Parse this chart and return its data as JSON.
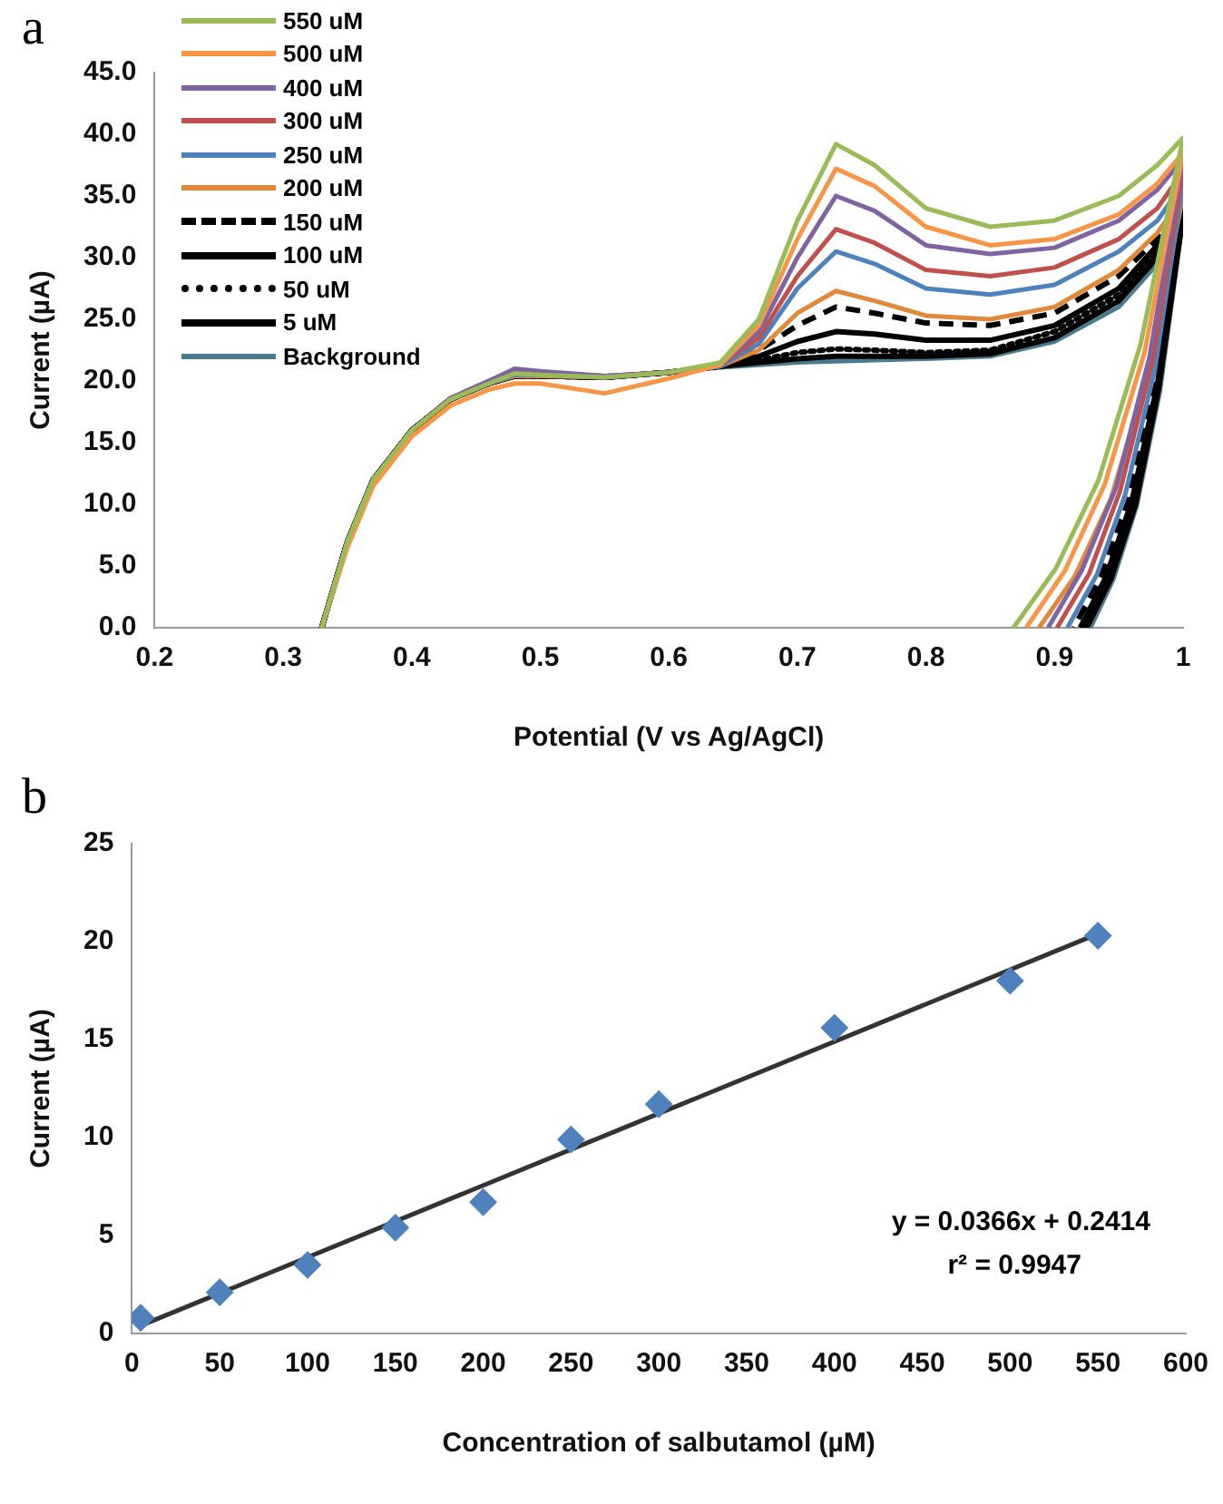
{
  "chart_data": [
    {
      "type": "line",
      "xlabel": "Potential (V vs Ag/AgCl)",
      "ylabel": "Current (µA)",
      "annotations": [
        "a"
      ],
      "xlim": [
        0.2,
        1
      ],
      "xticks": [
        0.2,
        0.3,
        0.4,
        0.5,
        0.6,
        0.7,
        0.8,
        0.9,
        1
      ],
      "ylim": [
        0,
        45
      ],
      "yticks": [
        {
          "value": 0,
          "label": "0.0"
        },
        {
          "value": 5,
          "label": "5.0"
        },
        {
          "value": 10,
          "label": "10.0"
        },
        {
          "value": 15,
          "label": "15.0"
        },
        {
          "value": 20,
          "label": "20.0"
        },
        {
          "value": 25,
          "label": "25.0"
        },
        {
          "value": 30,
          "label": "30.0"
        },
        {
          "value": 35,
          "label": "35.0"
        },
        {
          "value": 40,
          "label": "40.0"
        },
        {
          "value": 45,
          "label": "45.0"
        }
      ],
      "grid": false,
      "legend": "top left",
      "series": [
        {
          "name": "550 uM",
          "color": "#9bbb59",
          "x": [
            0.33,
            0.35,
            0.37,
            0.4,
            0.43,
            0.46,
            0.48,
            0.5,
            0.55,
            0.6,
            0.64,
            0.67,
            0.7,
            0.73,
            0.76,
            0.8,
            0.85,
            0.9,
            0.95,
            0.98,
            1,
            0.967,
            0.934,
            0.901,
            0.868
          ],
          "values": [
            0,
            7,
            12,
            16,
            18.5,
            19.8,
            20.6,
            20.5,
            20.3,
            20.7,
            21.5,
            25,
            33,
            39.2,
            37.5,
            34,
            32.5,
            33,
            35,
            37.5,
            39.7,
            23,
            11.9,
            4.8,
            0
          ]
        },
        {
          "name": "500 uM",
          "color": "#f79646",
          "x": [
            0.33,
            0.35,
            0.37,
            0.4,
            0.43,
            0.46,
            0.48,
            0.5,
            0.55,
            0.6,
            0.64,
            0.67,
            0.7,
            0.73,
            0.76,
            0.8,
            0.85,
            0.9,
            0.95,
            0.98,
            1,
            0.97,
            0.939,
            0.908,
            0.878
          ],
          "values": [
            0,
            6.5,
            11.5,
            15.5,
            18,
            19.3,
            19.8,
            19.8,
            19,
            20.2,
            21.3,
            24.5,
            31.5,
            37.2,
            35.8,
            32.5,
            31,
            31.5,
            33.5,
            36,
            38.5,
            22.3,
            11.6,
            4.6,
            0
          ]
        },
        {
          "name": "400 uM",
          "color": "#8064a2",
          "x": [
            0.33,
            0.35,
            0.37,
            0.4,
            0.43,
            0.46,
            0.48,
            0.5,
            0.55,
            0.6,
            0.64,
            0.67,
            0.7,
            0.73,
            0.76,
            0.8,
            0.85,
            0.9,
            0.95,
            0.98,
            1,
            0.974,
            0.948,
            0.921,
            0.895
          ],
          "values": [
            0,
            7,
            12,
            16,
            18.6,
            20,
            21,
            20.8,
            20.4,
            20.7,
            21.3,
            24,
            30,
            35,
            33.8,
            31,
            30.3,
            30.8,
            33,
            35.5,
            38,
            22,
            11.4,
            4.6,
            0
          ]
        },
        {
          "name": "300 uM",
          "color": "#c0504d",
          "x": [
            0.33,
            0.35,
            0.37,
            0.4,
            0.43,
            0.46,
            0.48,
            0.5,
            0.55,
            0.6,
            0.64,
            0.67,
            0.7,
            0.73,
            0.76,
            0.8,
            0.85,
            0.9,
            0.95,
            0.98,
            1,
            0.976,
            0.951,
            0.927,
            0.902
          ],
          "values": [
            0,
            7,
            12,
            16,
            18.6,
            20,
            20.9,
            20.7,
            20.4,
            20.7,
            21.3,
            23.5,
            28.5,
            32.3,
            31.2,
            29,
            28.5,
            29.2,
            31.5,
            34,
            37,
            21.5,
            11.1,
            4.4,
            0
          ]
        },
        {
          "name": "250 uM",
          "color": "#4f81bd",
          "x": [
            0.43,
            0.46,
            0.48,
            0.5,
            0.55,
            0.6,
            0.64,
            0.67,
            0.7,
            0.73,
            0.76,
            0.8,
            0.85,
            0.9,
            0.95,
            0.98,
            1,
            0.978,
            0.955,
            0.933,
            0.91
          ],
          "values": [
            18.5,
            19.8,
            20.5,
            20.5,
            20.3,
            20.7,
            21.2,
            23,
            27.5,
            30.5,
            29.5,
            27.5,
            27,
            27.8,
            30.5,
            33,
            36,
            20.9,
            10.8,
            4.3,
            0
          ]
        },
        {
          "name": "200 uM",
          "color": "#e0893a",
          "x": [
            0.33,
            0.35,
            0.37,
            0.4,
            0.43,
            0.46,
            0.48,
            0.5,
            0.55,
            0.6,
            0.64,
            0.67,
            0.7,
            0.73,
            0.76,
            0.8,
            0.85,
            0.9,
            0.95,
            0.98,
            1,
            0.972,
            0.944,
            0.916,
            0.888
          ],
          "values": [
            0,
            7,
            12,
            16,
            18.5,
            19.8,
            20.4,
            20.4,
            20.3,
            20.7,
            21.2,
            22.5,
            25.5,
            27.3,
            26.5,
            25.3,
            25,
            26,
            29,
            32,
            35,
            20.3,
            10.5,
            4.2,
            0
          ]
        },
        {
          "name": "150 uM",
          "color": "#000000",
          "line_style": "dashed",
          "x": [
            0.33,
            0.35,
            0.37,
            0.4,
            0.43,
            0.46,
            0.48,
            0.5,
            0.55,
            0.6,
            0.64,
            0.67,
            0.7,
            0.73,
            0.76,
            0.8,
            0.85,
            0.9,
            0.95,
            0.98,
            1,
            0.979,
            0.958,
            0.936,
            0.915
          ],
          "values": [
            0,
            7,
            12,
            16,
            18.5,
            19.8,
            20.4,
            20.4,
            20.3,
            20.7,
            21.2,
            22.5,
            24.5,
            26,
            25.5,
            24.7,
            24.5,
            25.5,
            28.5,
            31.5,
            34.5,
            20,
            10.4,
            4.1,
            0
          ]
        },
        {
          "name": "100 uM",
          "color": "#000000",
          "x": [
            0.33,
            0.35,
            0.37,
            0.4,
            0.43,
            0.46,
            0.48,
            0.5,
            0.55,
            0.6,
            0.64,
            0.67,
            0.7,
            0.73,
            0.76,
            0.8,
            0.85,
            0.9,
            0.95,
            0.98,
            1,
            0.98,
            0.96,
            0.94,
            0.92
          ],
          "values": [
            0,
            7,
            12,
            16,
            18.5,
            19.8,
            20.4,
            20.4,
            20.3,
            20.7,
            21.2,
            22,
            23.2,
            24,
            23.8,
            23.3,
            23.3,
            24.5,
            27.5,
            31,
            34,
            19.7,
            10.2,
            4.1,
            0
          ]
        },
        {
          "name": "50 uM",
          "color": "#000000",
          "line_style": "dotted",
          "x": [
            0.33,
            0.35,
            0.37,
            0.4,
            0.43,
            0.46,
            0.48,
            0.5,
            0.55,
            0.6,
            0.64,
            0.67,
            0.7,
            0.73,
            0.76,
            0.8,
            0.85,
            0.9,
            0.95,
            0.98,
            1,
            0.981,
            0.961,
            0.942,
            0.922
          ],
          "values": [
            0,
            7,
            12,
            16,
            18.5,
            19.8,
            20.4,
            20.4,
            20.3,
            20.7,
            21.2,
            21.7,
            22.3,
            22.6,
            22.5,
            22.3,
            22.5,
            24,
            27,
            30.5,
            33.8,
            19.5,
            10,
            4,
            0
          ]
        },
        {
          "name": "5 uM",
          "color": "#000000",
          "x": [
            0.33,
            0.35,
            0.37,
            0.4,
            0.43,
            0.46,
            0.48,
            0.5,
            0.55,
            0.6,
            0.64,
            0.67,
            0.7,
            0.73,
            0.8,
            0.85,
            0.9,
            0.95,
            0.98,
            1,
            0.981,
            0.963,
            0.944,
            0.925
          ],
          "values": [
            0,
            7,
            12,
            16,
            18.5,
            19.8,
            20.4,
            20.4,
            20.3,
            20.7,
            21.2,
            21.5,
            21.8,
            22,
            22,
            22.2,
            23.5,
            26.5,
            30,
            33.5,
            19.4,
            10,
            4,
            0
          ]
        },
        {
          "name": "Background",
          "color": "#4a7b8c",
          "x": [
            0.33,
            0.35,
            0.37,
            0.4,
            0.43,
            0.46,
            0.48,
            0.5,
            0.55,
            0.6,
            0.64,
            0.67,
            0.7,
            0.73,
            0.8,
            0.85,
            0.9,
            0.95,
            0.98,
            1,
            0.982,
            0.964,
            0.946,
            0.928
          ],
          "values": [
            0,
            7,
            12,
            16,
            18.5,
            19.8,
            20.4,
            20.4,
            20.3,
            20.7,
            21.1,
            21.3,
            21.5,
            21.6,
            21.8,
            22,
            23.2,
            26,
            29.5,
            33.2,
            19.2,
            9.9,
            4,
            0
          ]
        }
      ]
    },
    {
      "type": "scatter",
      "xlabel": "Concentration of salbutamol (µM)",
      "ylabel": "Current (µA)",
      "annotations": [
        "b",
        "y = 0.0366x + 0.2414",
        "r² = 0.9947"
      ],
      "xlim": [
        0,
        600
      ],
      "xticks": [
        0,
        50,
        100,
        150,
        200,
        250,
        300,
        350,
        400,
        450,
        500,
        550,
        600
      ],
      "ylim": [
        0,
        25
      ],
      "yticks": [
        0,
        5,
        10,
        15,
        20,
        25
      ],
      "grid": false,
      "series": [
        {
          "color": "#4f81bd",
          "marker": "diamond",
          "x": [
            5,
            50,
            100,
            150,
            200,
            250,
            300,
            400,
            500,
            550
          ],
          "values": [
            0.8,
            2.1,
            3.5,
            5.4,
            6.7,
            9.9,
            11.7,
            15.6,
            18,
            20.3
          ]
        },
        {
          "type": "line",
          "color": "#333333",
          "x": [
            5,
            550
          ],
          "values": [
            0.4,
            20.4
          ]
        }
      ]
    }
  ]
}
